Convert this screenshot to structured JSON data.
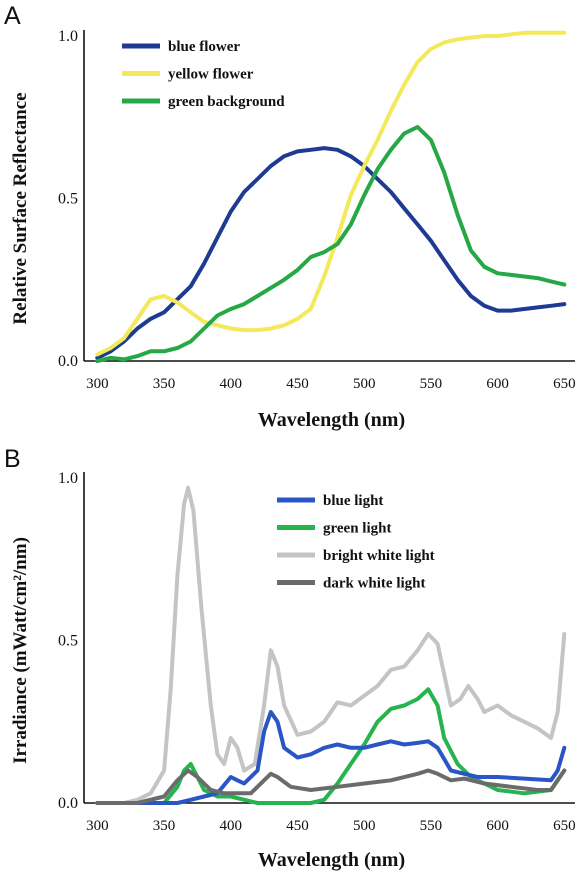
{
  "chart_data": [
    {
      "panel": "A",
      "type": "line",
      "title": "",
      "xlabel": "Wavelength (nm)",
      "ylabel": "Relative Surface Reflectance",
      "xlim": [
        290,
        655
      ],
      "ylim": [
        0,
        1.0
      ],
      "x_ticks": [
        300,
        350,
        400,
        450,
        500,
        550,
        600,
        650
      ],
      "y_ticks": [
        {
          "value": 0,
          "label": "0.0"
        },
        {
          "value": 0.5,
          "label": "0.5"
        },
        {
          "value": 1.0,
          "label": "1.0"
        }
      ],
      "legend_position": "top-left",
      "series": [
        {
          "name": "blue flower",
          "color": "#1f3a93",
          "points": [
            [
              300,
              0.01
            ],
            [
              310,
              0.03
            ],
            [
              320,
              0.06
            ],
            [
              330,
              0.1
            ],
            [
              340,
              0.13
            ],
            [
              350,
              0.15
            ],
            [
              360,
              0.19
            ],
            [
              370,
              0.23
            ],
            [
              380,
              0.3
            ],
            [
              390,
              0.38
            ],
            [
              400,
              0.46
            ],
            [
              410,
              0.52
            ],
            [
              420,
              0.56
            ],
            [
              430,
              0.6
            ],
            [
              440,
              0.63
            ],
            [
              450,
              0.645
            ],
            [
              460,
              0.65
            ],
            [
              470,
              0.655
            ],
            [
              480,
              0.65
            ],
            [
              490,
              0.63
            ],
            [
              500,
              0.6
            ],
            [
              510,
              0.56
            ],
            [
              520,
              0.52
            ],
            [
              530,
              0.47
            ],
            [
              540,
              0.42
            ],
            [
              550,
              0.37
            ],
            [
              560,
              0.31
            ],
            [
              570,
              0.25
            ],
            [
              580,
              0.2
            ],
            [
              590,
              0.17
            ],
            [
              600,
              0.155
            ],
            [
              610,
              0.155
            ],
            [
              620,
              0.16
            ],
            [
              630,
              0.165
            ],
            [
              640,
              0.17
            ],
            [
              650,
              0.175
            ]
          ]
        },
        {
          "name": "yellow flower",
          "color": "#f3e95a",
          "points": [
            [
              300,
              0.02
            ],
            [
              310,
              0.04
            ],
            [
              320,
              0.07
            ],
            [
              330,
              0.13
            ],
            [
              340,
              0.19
            ],
            [
              350,
              0.2
            ],
            [
              360,
              0.18
            ],
            [
              370,
              0.15
            ],
            [
              380,
              0.12
            ],
            [
              390,
              0.11
            ],
            [
              400,
              0.1
            ],
            [
              410,
              0.095
            ],
            [
              420,
              0.095
            ],
            [
              430,
              0.1
            ],
            [
              440,
              0.11
            ],
            [
              450,
              0.13
            ],
            [
              460,
              0.16
            ],
            [
              470,
              0.26
            ],
            [
              480,
              0.38
            ],
            [
              490,
              0.51
            ],
            [
              500,
              0.6
            ],
            [
              510,
              0.68
            ],
            [
              520,
              0.77
            ],
            [
              530,
              0.85
            ],
            [
              540,
              0.92
            ],
            [
              550,
              0.96
            ],
            [
              560,
              0.98
            ],
            [
              570,
              0.99
            ],
            [
              580,
              0.995
            ],
            [
              590,
              1.0
            ],
            [
              600,
              1.0
            ],
            [
              610,
              1.005
            ],
            [
              620,
              1.01
            ],
            [
              630,
              1.01
            ],
            [
              640,
              1.01
            ],
            [
              650,
              1.01
            ]
          ]
        },
        {
          "name": "green background",
          "color": "#25a845",
          "points": [
            [
              300,
              0.0
            ],
            [
              310,
              0.01
            ],
            [
              320,
              0.005
            ],
            [
              330,
              0.015
            ],
            [
              340,
              0.03
            ],
            [
              350,
              0.03
            ],
            [
              360,
              0.04
            ],
            [
              370,
              0.06
            ],
            [
              380,
              0.1
            ],
            [
              390,
              0.14
            ],
            [
              400,
              0.16
            ],
            [
              410,
              0.175
            ],
            [
              420,
              0.2
            ],
            [
              430,
              0.225
            ],
            [
              440,
              0.25
            ],
            [
              450,
              0.28
            ],
            [
              460,
              0.32
            ],
            [
              470,
              0.335
            ],
            [
              480,
              0.36
            ],
            [
              490,
              0.42
            ],
            [
              500,
              0.51
            ],
            [
              510,
              0.59
            ],
            [
              520,
              0.65
            ],
            [
              530,
              0.7
            ],
            [
              540,
              0.72
            ],
            [
              550,
              0.68
            ],
            [
              560,
              0.58
            ],
            [
              570,
              0.45
            ],
            [
              580,
              0.34
            ],
            [
              590,
              0.29
            ],
            [
              600,
              0.27
            ],
            [
              610,
              0.265
            ],
            [
              620,
              0.26
            ],
            [
              630,
              0.255
            ],
            [
              640,
              0.245
            ],
            [
              650,
              0.235
            ]
          ]
        }
      ]
    },
    {
      "panel": "B",
      "type": "line",
      "title": "",
      "xlabel": "Wavelength (nm)",
      "ylabel": "Irradiance (mWatt/cm²/nm)",
      "xlim": [
        290,
        655
      ],
      "ylim": [
        0,
        1.0
      ],
      "x_ticks": [
        300,
        350,
        400,
        450,
        500,
        550,
        600,
        650
      ],
      "y_ticks": [
        {
          "value": 0,
          "label": "0.0"
        },
        {
          "value": 0.5,
          "label": "0.5"
        },
        {
          "value": 1.0,
          "label": "1.0"
        }
      ],
      "legend_position": "top-right",
      "series": [
        {
          "name": "bright white light",
          "color": "#c4c4c4",
          "points": [
            [
              300,
              0.0
            ],
            [
              320,
              0.0
            ],
            [
              330,
              0.01
            ],
            [
              340,
              0.03
            ],
            [
              350,
              0.1
            ],
            [
              355,
              0.35
            ],
            [
              360,
              0.7
            ],
            [
              365,
              0.92
            ],
            [
              368,
              0.97
            ],
            [
              372,
              0.9
            ],
            [
              378,
              0.6
            ],
            [
              385,
              0.3
            ],
            [
              390,
              0.15
            ],
            [
              395,
              0.12
            ],
            [
              400,
              0.2
            ],
            [
              405,
              0.17
            ],
            [
              410,
              0.1
            ],
            [
              418,
              0.12
            ],
            [
              425,
              0.3
            ],
            [
              430,
              0.47
            ],
            [
              435,
              0.42
            ],
            [
              440,
              0.3
            ],
            [
              450,
              0.21
            ],
            [
              460,
              0.22
            ],
            [
              470,
              0.25
            ],
            [
              480,
              0.31
            ],
            [
              490,
              0.3
            ],
            [
              500,
              0.33
            ],
            [
              510,
              0.36
            ],
            [
              520,
              0.41
            ],
            [
              530,
              0.42
            ],
            [
              540,
              0.47
            ],
            [
              548,
              0.52
            ],
            [
              555,
              0.49
            ],
            [
              565,
              0.3
            ],
            [
              572,
              0.32
            ],
            [
              578,
              0.36
            ],
            [
              585,
              0.32
            ],
            [
              590,
              0.28
            ],
            [
              600,
              0.3
            ],
            [
              610,
              0.27
            ],
            [
              620,
              0.25
            ],
            [
              630,
              0.23
            ],
            [
              640,
              0.2
            ],
            [
              645,
              0.28
            ],
            [
              650,
              0.52
            ]
          ]
        },
        {
          "name": "green light",
          "color": "#27b350",
          "points": [
            [
              300,
              0.0
            ],
            [
              350,
              0.0
            ],
            [
              360,
              0.05
            ],
            [
              365,
              0.1
            ],
            [
              370,
              0.12
            ],
            [
              375,
              0.08
            ],
            [
              380,
              0.04
            ],
            [
              390,
              0.02
            ],
            [
              400,
              0.02
            ],
            [
              420,
              0.0
            ],
            [
              460,
              0.0
            ],
            [
              470,
              0.01
            ],
            [
              480,
              0.06
            ],
            [
              490,
              0.12
            ],
            [
              500,
              0.18
            ],
            [
              510,
              0.25
            ],
            [
              520,
              0.29
            ],
            [
              530,
              0.3
            ],
            [
              540,
              0.32
            ],
            [
              548,
              0.35
            ],
            [
              555,
              0.3
            ],
            [
              560,
              0.2
            ],
            [
              570,
              0.12
            ],
            [
              580,
              0.08
            ],
            [
              600,
              0.04
            ],
            [
              620,
              0.03
            ],
            [
              640,
              0.04
            ],
            [
              650,
              0.1
            ]
          ]
        },
        {
          "name": "blue light",
          "color": "#2a55c6",
          "points": [
            [
              300,
              0.0
            ],
            [
              350,
              0.0
            ],
            [
              360,
              0.0
            ],
            [
              370,
              0.01
            ],
            [
              380,
              0.02
            ],
            [
              390,
              0.03
            ],
            [
              400,
              0.08
            ],
            [
              405,
              0.07
            ],
            [
              410,
              0.06
            ],
            [
              420,
              0.1
            ],
            [
              425,
              0.22
            ],
            [
              430,
              0.28
            ],
            [
              435,
              0.25
            ],
            [
              440,
              0.17
            ],
            [
              450,
              0.14
            ],
            [
              460,
              0.15
            ],
            [
              470,
              0.17
            ],
            [
              480,
              0.18
            ],
            [
              490,
              0.17
            ],
            [
              500,
              0.17
            ],
            [
              510,
              0.18
            ],
            [
              520,
              0.19
            ],
            [
              530,
              0.18
            ],
            [
              540,
              0.185
            ],
            [
              548,
              0.19
            ],
            [
              555,
              0.17
            ],
            [
              565,
              0.1
            ],
            [
              575,
              0.09
            ],
            [
              585,
              0.08
            ],
            [
              600,
              0.08
            ],
            [
              620,
              0.075
            ],
            [
              640,
              0.07
            ],
            [
              645,
              0.1
            ],
            [
              650,
              0.17
            ]
          ]
        },
        {
          "name": "dark white light",
          "color": "#6b6b6b",
          "points": [
            [
              300,
              0.0
            ],
            [
              330,
              0.0
            ],
            [
              350,
              0.02
            ],
            [
              360,
              0.07
            ],
            [
              368,
              0.1
            ],
            [
              375,
              0.08
            ],
            [
              385,
              0.04
            ],
            [
              395,
              0.03
            ],
            [
              405,
              0.03
            ],
            [
              415,
              0.03
            ],
            [
              425,
              0.07
            ],
            [
              430,
              0.09
            ],
            [
              435,
              0.08
            ],
            [
              445,
              0.05
            ],
            [
              460,
              0.04
            ],
            [
              480,
              0.05
            ],
            [
              500,
              0.06
            ],
            [
              520,
              0.07
            ],
            [
              540,
              0.09
            ],
            [
              548,
              0.1
            ],
            [
              555,
              0.09
            ],
            [
              565,
              0.07
            ],
            [
              575,
              0.075
            ],
            [
              590,
              0.06
            ],
            [
              610,
              0.05
            ],
            [
              630,
              0.04
            ],
            [
              640,
              0.04
            ],
            [
              650,
              0.1
            ]
          ]
        }
      ]
    }
  ],
  "panel_labels": {
    "a": "A",
    "b": "B"
  }
}
